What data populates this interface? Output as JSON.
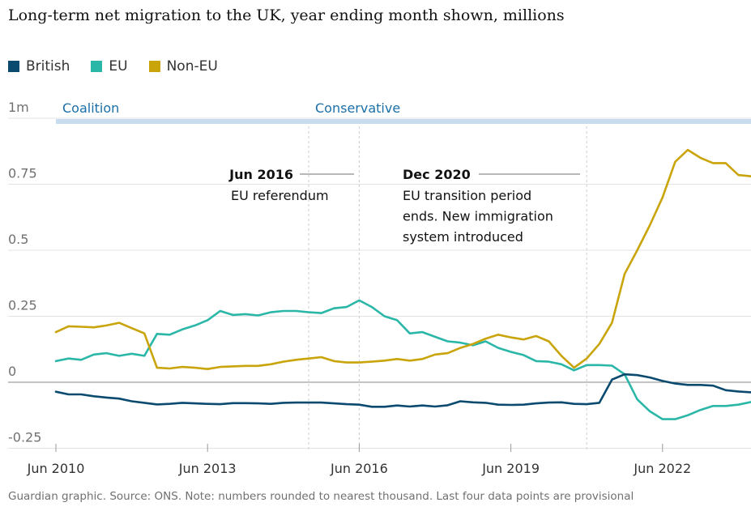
{
  "title": "Long-term net migration to the UK, year ending month shown, millions",
  "source": "Guardian graphic. Source: ONS. Note: numbers rounded to nearest thousand. Last four data points are provisional",
  "colors": {
    "british": "#0b4a6f",
    "eu": "#2bb7a8",
    "non_eu": "#c9a40a",
    "government_label": "#1b6fa8",
    "government_band": "#c9dcef",
    "zero_line": "#888888",
    "gridline": "#e3e3e3"
  },
  "chart_data": {
    "type": "line",
    "title": "Long-term net migration to the UK, year ending month shown, millions",
    "xlabel": "",
    "ylabel": "",
    "x_ticks": [
      "Jun 2010",
      "Jun 2013",
      "Jun 2016",
      "Jun 2019",
      "Jun 2022"
    ],
    "y_ticks": [
      {
        "value": 1.0,
        "label": "1m"
      },
      {
        "value": 0.75,
        "label": "0.75"
      },
      {
        "value": 0.5,
        "label": "0.5"
      },
      {
        "value": 0.25,
        "label": "0.25"
      },
      {
        "value": 0,
        "label": "0"
      },
      {
        "value": -0.25,
        "label": "-0.25"
      }
    ],
    "ylim": [
      -0.27,
      1.0
    ],
    "xlim": [
      2010.5,
      2024.25
    ],
    "grid": true,
    "legend_position": "top-left",
    "periods": [
      {
        "label": "Coalition",
        "start": 2010.5,
        "end": 2015.5
      },
      {
        "label": "Conservative",
        "start": 2015.5,
        "end": 2024.25
      }
    ],
    "annotations": [
      {
        "x": 2016.5,
        "title": "Jun 2016",
        "text": [
          "EU referendum"
        ]
      },
      {
        "x": 2021.0,
        "title": "Dec 2020",
        "text": [
          "EU transition period",
          "ends. New immigration",
          "system introduced"
        ]
      }
    ],
    "series": [
      {
        "name": "British",
        "x": [
          2010.5,
          2010.75,
          2011.0,
          2011.25,
          2011.5,
          2011.75,
          2012.0,
          2012.25,
          2012.5,
          2012.75,
          2013.0,
          2013.25,
          2013.5,
          2013.75,
          2014.0,
          2014.25,
          2014.5,
          2014.75,
          2015.0,
          2015.25,
          2015.5,
          2015.75,
          2016.0,
          2016.25,
          2016.5,
          2016.75,
          2017.0,
          2017.25,
          2017.5,
          2017.75,
          2018.0,
          2018.25,
          2018.5,
          2018.75,
          2019.0,
          2019.25,
          2019.5,
          2019.75,
          2020.0,
          2020.25,
          2020.5,
          2020.75,
          2021.0,
          2021.25,
          2021.5,
          2021.75,
          2022.0,
          2022.25,
          2022.5,
          2022.75,
          2023.0,
          2023.25,
          2023.5,
          2023.75,
          2024.0,
          2024.25
        ],
        "values": [
          -0.036,
          -0.046,
          -0.046,
          -0.053,
          -0.058,
          -0.062,
          -0.072,
          -0.078,
          -0.084,
          -0.082,
          -0.078,
          -0.08,
          -0.082,
          -0.083,
          -0.079,
          -0.079,
          -0.08,
          -0.082,
          -0.078,
          -0.077,
          -0.077,
          -0.077,
          -0.08,
          -0.083,
          -0.085,
          -0.093,
          -0.093,
          -0.088,
          -0.092,
          -0.088,
          -0.092,
          -0.087,
          -0.072,
          -0.076,
          -0.078,
          -0.085,
          -0.086,
          -0.085,
          -0.08,
          -0.077,
          -0.076,
          -0.082,
          -0.083,
          -0.078,
          0.01,
          0.03,
          0.027,
          0.018,
          0.005,
          -0.005,
          -0.01,
          -0.01,
          -0.013,
          -0.03,
          -0.035,
          -0.038
        ]
      },
      {
        "name": "EU",
        "x": [
          2010.5,
          2010.75,
          2011.0,
          2011.25,
          2011.5,
          2011.75,
          2012.0,
          2012.25,
          2012.5,
          2012.75,
          2013.0,
          2013.25,
          2013.5,
          2013.75,
          2014.0,
          2014.25,
          2014.5,
          2014.75,
          2015.0,
          2015.25,
          2015.5,
          2015.75,
          2016.0,
          2016.25,
          2016.5,
          2016.75,
          2017.0,
          2017.25,
          2017.5,
          2017.75,
          2018.0,
          2018.25,
          2018.5,
          2018.75,
          2019.0,
          2019.25,
          2019.5,
          2019.75,
          2020.0,
          2020.25,
          2020.5,
          2020.75,
          2021.0,
          2021.25,
          2021.5,
          2021.75,
          2022.0,
          2022.25,
          2022.5,
          2022.75,
          2023.0,
          2023.25,
          2023.5,
          2023.75,
          2024.0,
          2024.25
        ],
        "values": [
          0.08,
          0.09,
          0.085,
          0.105,
          0.11,
          0.1,
          0.108,
          0.1,
          0.183,
          0.18,
          0.2,
          0.215,
          0.235,
          0.27,
          0.255,
          0.258,
          0.253,
          0.265,
          0.27,
          0.27,
          0.265,
          0.262,
          0.28,
          0.285,
          0.31,
          0.285,
          0.25,
          0.235,
          0.185,
          0.19,
          0.172,
          0.155,
          0.15,
          0.14,
          0.155,
          0.13,
          0.115,
          0.103,
          0.08,
          0.078,
          0.068,
          0.045,
          0.065,
          0.065,
          0.063,
          0.03,
          -0.065,
          -0.11,
          -0.14,
          -0.14,
          -0.125,
          -0.105,
          -0.09,
          -0.09,
          -0.085,
          -0.075
        ]
      },
      {
        "name": "Non-EU",
        "x": [
          2010.5,
          2010.75,
          2011.0,
          2011.25,
          2011.5,
          2011.75,
          2012.0,
          2012.25,
          2012.5,
          2012.75,
          2013.0,
          2013.25,
          2013.5,
          2013.75,
          2014.0,
          2014.25,
          2014.5,
          2014.75,
          2015.0,
          2015.25,
          2015.5,
          2015.75,
          2016.0,
          2016.25,
          2016.5,
          2016.75,
          2017.0,
          2017.25,
          2017.5,
          2017.75,
          2018.0,
          2018.25,
          2018.5,
          2018.75,
          2019.0,
          2019.25,
          2019.5,
          2019.75,
          2020.0,
          2020.25,
          2020.5,
          2020.75,
          2021.0,
          2021.25,
          2021.5,
          2021.75,
          2022.0,
          2022.25,
          2022.5,
          2022.75,
          2023.0,
          2023.25,
          2023.5,
          2023.75,
          2024.0,
          2024.25
        ],
        "values": [
          0.19,
          0.212,
          0.21,
          0.208,
          0.215,
          0.225,
          0.205,
          0.185,
          0.055,
          0.052,
          0.058,
          0.055,
          0.05,
          0.058,
          0.06,
          0.062,
          0.062,
          0.068,
          0.078,
          0.085,
          0.09,
          0.095,
          0.08,
          0.075,
          0.075,
          0.078,
          0.082,
          0.088,
          0.082,
          0.088,
          0.105,
          0.11,
          0.13,
          0.145,
          0.165,
          0.18,
          0.17,
          0.162,
          0.175,
          0.155,
          0.1,
          0.055,
          0.09,
          0.145,
          0.225,
          0.41,
          0.5,
          0.595,
          0.7,
          0.835,
          0.88,
          0.85,
          0.83,
          0.83,
          0.785,
          0.78
        ]
      }
    ]
  }
}
